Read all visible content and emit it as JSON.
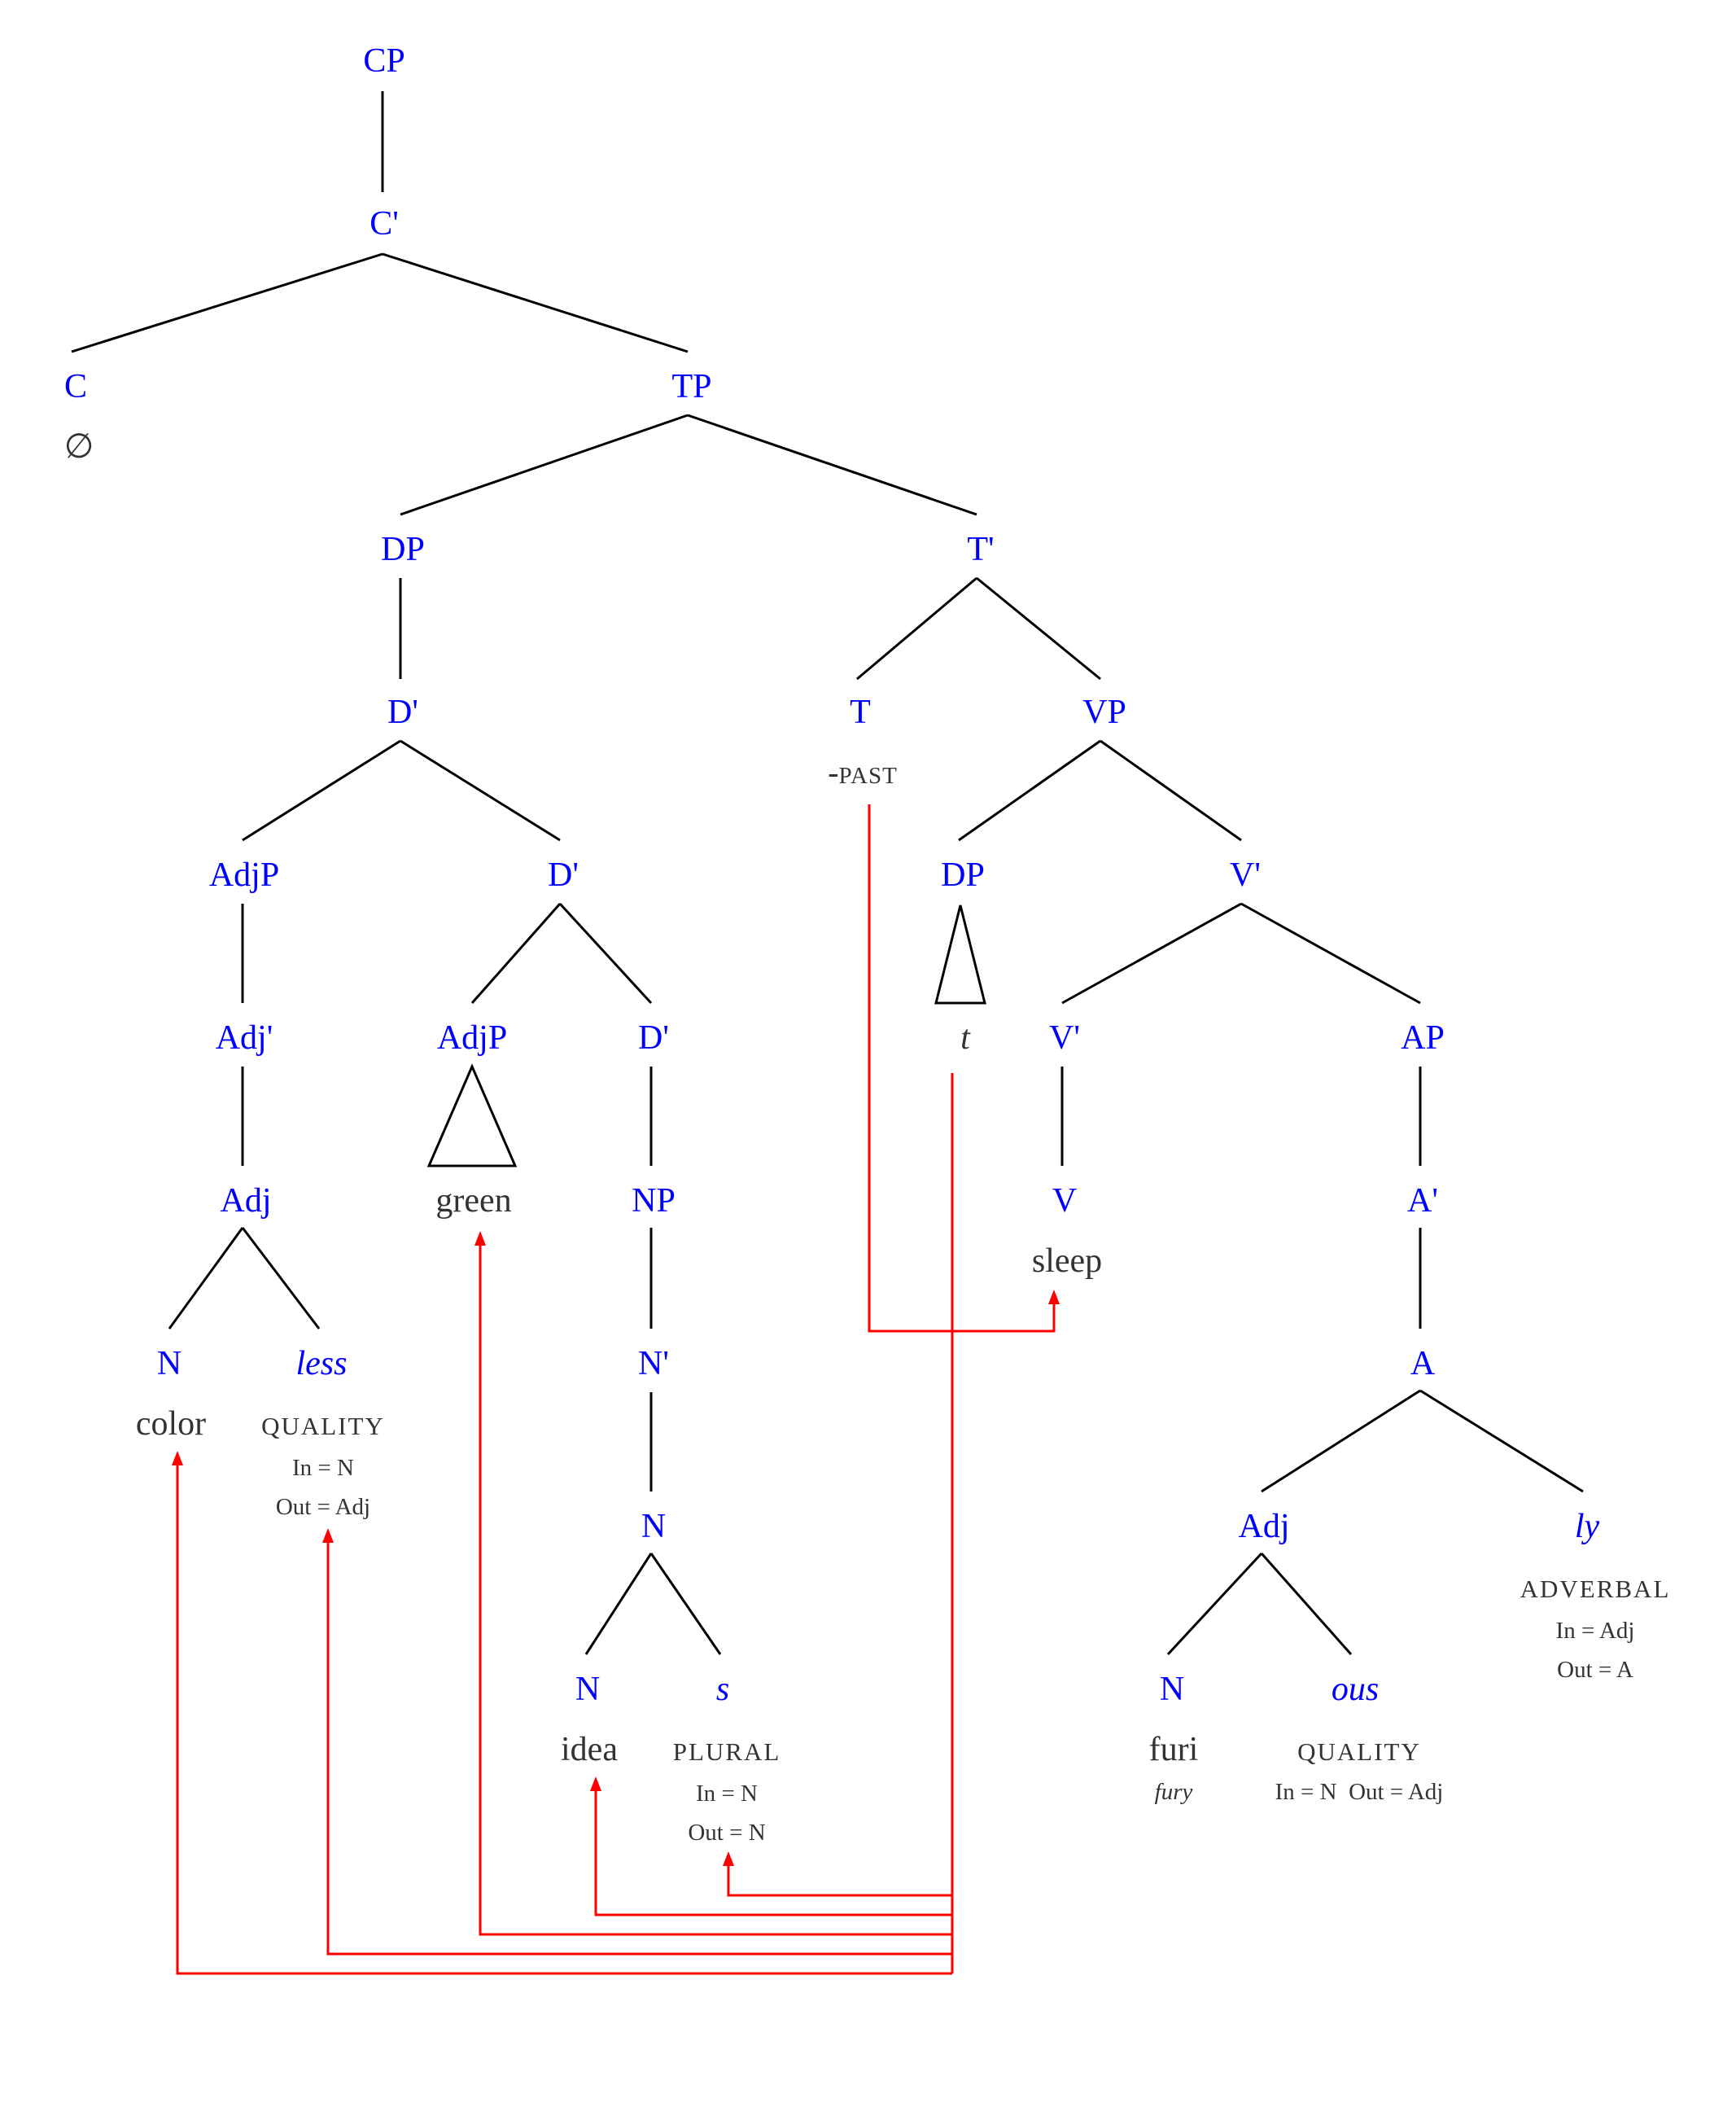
{
  "nodes": {
    "cp": "CP",
    "c_bar": "C'",
    "c": "C",
    "tp": "TP",
    "dp_subj": "DP",
    "t_bar": "T'",
    "d_bar_1": "D'",
    "t": "T",
    "vp": "VP",
    "adjp_1": "AdjP",
    "d_bar_2": "D'",
    "dp_trace": "DP",
    "v_bar_1": "V'",
    "adj_bar": "Adj'",
    "adjp_2": "AdjP",
    "d_bar_3": "D'",
    "v_bar_2": "V'",
    "ap": "AP",
    "adj_1": "Adj",
    "np": "NP",
    "v": "V",
    "a_bar": "A'",
    "n_color": "N",
    "less": "less",
    "n_bar": "N'",
    "a": "A",
    "n_idea_parent": "N",
    "adj_2": "Adj",
    "ly": "ly",
    "n_idea": "N",
    "s": "s",
    "n_furi": "N",
    "ous": "ous"
  },
  "words": {
    "empty_c": "∅",
    "past_dash": "-",
    "past": "PAST",
    "trace": "t",
    "green": "green",
    "sleep": "sleep",
    "color": "color",
    "idea": "idea",
    "furi": "furi",
    "fury": "fury"
  },
  "features": {
    "less": {
      "name": "QUALITY",
      "in": "In = N",
      "out": "Out = Adj"
    },
    "s": {
      "name": "PLURAL",
      "in": "In = N",
      "out": "Out = N"
    },
    "ly": {
      "name": "ADVERBAL",
      "in": "In = Adj",
      "out": "Out = A"
    },
    "ous": {
      "name": "QUALITY",
      "in_out": "In = N  Out = Adj"
    }
  },
  "colors": {
    "category_label": "#0000ff",
    "word": "#333333",
    "branch": "#000000",
    "movement_arrow": "#ff0000"
  }
}
